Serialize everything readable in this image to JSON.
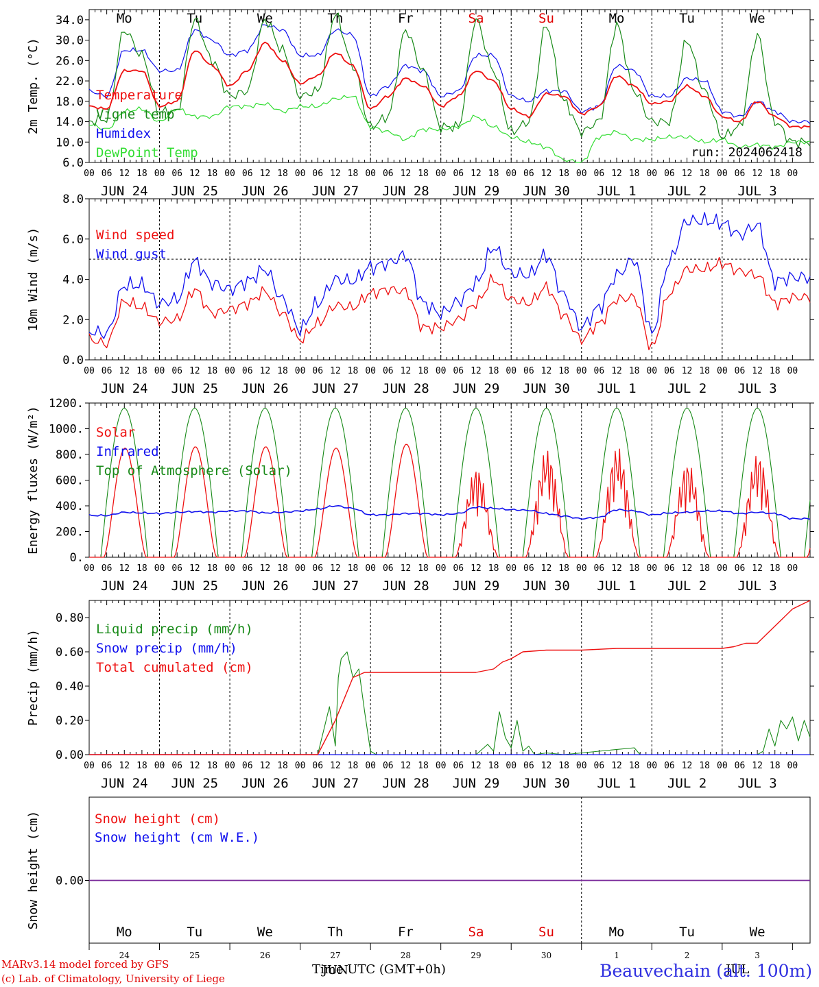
{
  "footer": {
    "credit_line1": "MARv3.14 model forced by GFS",
    "credit_line2": "(c) Lab. of Climatology, University of Liege",
    "station": "Beauvechain (alt. 100m)",
    "time_label": "Time UTC (GMT+0h)",
    "month_label": "JUN",
    "month_label_2": "JUL"
  },
  "colors": {
    "red": "#ee1010",
    "green": "#188a18",
    "blue": "#1010ee",
    "lightgreen": "#33dd33",
    "purple": "#7a2a9a"
  },
  "x_axis": {
    "hour_ticks": [
      "00",
      "06",
      "12",
      "18"
    ],
    "final_tick": "00",
    "days": [
      "JUN 24",
      "JUN 25",
      "JUN 26",
      "JUN 27",
      "JUN 28",
      "JUN 29",
      "JUN 30",
      "JUL  1",
      "JUL  2",
      "JUL  3"
    ],
    "weekdays": [
      "Mo",
      "Tu",
      "We",
      "Th",
      "Fr",
      "Sa",
      "Su",
      "Mo",
      "Tu",
      "We"
    ],
    "weekday_colors": [
      "#000",
      "#000",
      "#000",
      "#000",
      "#000",
      "#e00000",
      "#e00000",
      "#000",
      "#000",
      "#000"
    ],
    "day_numbers": [
      "24",
      "25",
      "26",
      "27",
      "28",
      "29",
      "30",
      "1",
      "2",
      "3"
    ]
  },
  "chart_data": [
    {
      "type": "line",
      "ylabel": "2m Temp. (°C)",
      "ylim": [
        6,
        36
      ],
      "yticks": [
        6.0,
        10.0,
        14.0,
        18.0,
        22.0,
        26.0,
        30.0,
        34.0
      ],
      "ytick_labels": [
        "6.0",
        "10.0",
        "14.0",
        "18.0",
        "22.0",
        "26.0",
        "30.0",
        "34.0"
      ],
      "annotation": "run: 2024062418",
      "x_hours": [
        0,
        6,
        12,
        18,
        24,
        30,
        36,
        42,
        48,
        54,
        60,
        66,
        72,
        78,
        84,
        90,
        96,
        102,
        108,
        114,
        120,
        126,
        132,
        138,
        144,
        150,
        156,
        162,
        168,
        174,
        180,
        186,
        192,
        198,
        204,
        210,
        216,
        222,
        228,
        234,
        240
      ],
      "series": [
        {
          "name": "Temperature",
          "color": "#ee1010",
          "values": [
            17,
            16.5,
            24,
            24,
            17,
            18,
            28,
            25,
            21,
            24,
            29.5,
            26,
            21.5,
            23,
            27.5,
            25,
            16.5,
            19,
            22.5,
            21,
            17,
            19,
            24,
            22,
            16.5,
            15,
            19.5,
            19,
            15.5,
            17,
            23,
            21,
            17.5,
            18,
            21,
            19,
            15,
            14,
            18,
            15,
            13
          ]
        },
        {
          "name": "Vigne temp",
          "color": "#188a18",
          "values": [
            14,
            14.5,
            32,
            27,
            16,
            16,
            34,
            26,
            19,
            20,
            34,
            28,
            19,
            20,
            35,
            25,
            13,
            15,
            32,
            24,
            13,
            13,
            34,
            24,
            12,
            14,
            33,
            18,
            12,
            14,
            33,
            20,
            14,
            14,
            30,
            20,
            11,
            13,
            31,
            14,
            10
          ]
        },
        {
          "name": "Humidex",
          "color": "#1010ee",
          "values": [
            20,
            19,
            28,
            28,
            24,
            24,
            32,
            30,
            27,
            28,
            33,
            32,
            27,
            27,
            32,
            31,
            19,
            21,
            25,
            24,
            19,
            20,
            27,
            27,
            19,
            18,
            20,
            20,
            16,
            17,
            25,
            24,
            19,
            19,
            22.5,
            22,
            16,
            15,
            18,
            16,
            14
          ]
        },
        {
          "name": "DewPoint Temp",
          "color": "#33dd33",
          "values": [
            13.5,
            12.5,
            16,
            16.5,
            14,
            16.5,
            15,
            15,
            17,
            17,
            17.5,
            16,
            17,
            17,
            18.5,
            19,
            13,
            12,
            10.5,
            12.5,
            12.5,
            13,
            15,
            13,
            11,
            10,
            9,
            6.5,
            6,
            11,
            12,
            10.5,
            10.5,
            11,
            11,
            10,
            10.5,
            9,
            9.5,
            9,
            10
          ]
        }
      ]
    },
    {
      "type": "line",
      "ylabel": "10m Wind (m/s)",
      "ylim": [
        0,
        8
      ],
      "yticks": [
        0,
        2,
        4,
        6,
        8
      ],
      "ytick_labels": [
        "0.0",
        "2.0",
        "4.0",
        "6.0",
        "8.0"
      ],
      "reference_line": 5.0,
      "x_hours": [
        0,
        6,
        12,
        18,
        24,
        30,
        36,
        42,
        48,
        54,
        60,
        66,
        72,
        78,
        84,
        90,
        96,
        102,
        108,
        114,
        120,
        126,
        132,
        138,
        144,
        150,
        156,
        162,
        168,
        174,
        180,
        186,
        192,
        198,
        204,
        210,
        216,
        222,
        228,
        234,
        240
      ],
      "series": [
        {
          "name": "Wind speed",
          "color": "#ee1010",
          "values": [
            1.0,
            0.8,
            2.9,
            2.6,
            1.9,
            2.0,
            3.5,
            2.3,
            2.5,
            2.8,
            3.4,
            2.3,
            1.0,
            1.8,
            2.7,
            2.6,
            3.3,
            3.5,
            3.4,
            1.6,
            1.6,
            2.0,
            2.8,
            4.0,
            3.0,
            2.8,
            3.6,
            2.2,
            1.0,
            1.8,
            3.0,
            3.1,
            0.6,
            3.3,
            4.5,
            4.5,
            4.8,
            4.4,
            4.2,
            2.8,
            3.1
          ]
        },
        {
          "name": "Wind gust",
          "color": "#1010ee",
          "values": [
            1.4,
            1.3,
            3.7,
            3.7,
            2.8,
            3.0,
            4.9,
            3.8,
            3.5,
            3.9,
            4.5,
            3.0,
            1.5,
            2.8,
            4.0,
            3.9,
            4.6,
            4.8,
            5.2,
            2.8,
            2.3,
            2.9,
            3.8,
            5.6,
            4.3,
            4.2,
            5.2,
            3.2,
            1.6,
            2.6,
            4.2,
            5.0,
            1.3,
            4.9,
            6.9,
            6.9,
            6.8,
            6.2,
            6.7,
            3.9,
            4.1
          ]
        }
      ]
    },
    {
      "type": "line",
      "ylabel": "Energy fluxes (W/m²)",
      "ylim": [
        0,
        1200
      ],
      "yticks": [
        0,
        200,
        400,
        600,
        800,
        1000,
        1200
      ],
      "ytick_labels": [
        "0.",
        "200.",
        "400.",
        "600.",
        "800.",
        "1000.",
        "1200."
      ],
      "solar_peaks": [
        850,
        860,
        860,
        850,
        880,
        700,
        840,
        860,
        740,
        810
      ],
      "toa_peak": 1160,
      "infrared_values": [
        325,
        325,
        350,
        345,
        340,
        350,
        355,
        350,
        360,
        360,
        345,
        350,
        360,
        375,
        400,
        380,
        330,
        330,
        340,
        340,
        330,
        340,
        390,
        380,
        370,
        365,
        340,
        320,
        300,
        310,
        370,
        360,
        330,
        345,
        350,
        360,
        360,
        340,
        350,
        340,
        300
      ],
      "series": [
        {
          "name": "Solar",
          "color": "#ee1010"
        },
        {
          "name": "Infrared",
          "color": "#1010ee"
        },
        {
          "name": "Top of Atmosphere (Solar)",
          "color": "#188a18"
        }
      ]
    },
    {
      "type": "line",
      "ylabel": "Precip (mm/h)",
      "ylim": [
        0,
        0.9
      ],
      "yticks": [
        0,
        0.2,
        0.4,
        0.6,
        0.8
      ],
      "ytick_labels": [
        "0.00",
        "0.20",
        "0.40",
        "0.60",
        "0.80"
      ],
      "liquid_points": [
        [
          0,
          0
        ],
        [
          78,
          0
        ],
        [
          82,
          0.28
        ],
        [
          84,
          0.05
        ],
        [
          85,
          0.45
        ],
        [
          86,
          0.56
        ],
        [
          88,
          0.6
        ],
        [
          90,
          0.45
        ],
        [
          92,
          0.5
        ],
        [
          94,
          0.25
        ],
        [
          96,
          0.02
        ],
        [
          98,
          0
        ],
        [
          132,
          0
        ],
        [
          136,
          0.06
        ],
        [
          138,
          0.02
        ],
        [
          140,
          0.25
        ],
        [
          142,
          0.1
        ],
        [
          144,
          0.04
        ],
        [
          146,
          0.2
        ],
        [
          148,
          0.02
        ],
        [
          150,
          0.05
        ],
        [
          152,
          0
        ],
        [
          156,
          0.01
        ],
        [
          162,
          0
        ],
        [
          186,
          0.04
        ],
        [
          188,
          0
        ],
        [
          228,
          0
        ],
        [
          230,
          0.02
        ],
        [
          232,
          0.15
        ],
        [
          234,
          0.05
        ],
        [
          236,
          0.2
        ],
        [
          238,
          0.15
        ],
        [
          240,
          0.22
        ],
        [
          242,
          0.08
        ],
        [
          244,
          0.2
        ],
        [
          246,
          0.1
        ]
      ],
      "cumulated_points": [
        [
          0,
          0
        ],
        [
          78,
          0
        ],
        [
          84,
          0.2
        ],
        [
          90,
          0.45
        ],
        [
          94,
          0.48
        ],
        [
          132,
          0.48
        ],
        [
          138,
          0.5
        ],
        [
          141,
          0.54
        ],
        [
          144,
          0.56
        ],
        [
          148,
          0.6
        ],
        [
          156,
          0.61
        ],
        [
          168,
          0.61
        ],
        [
          180,
          0.62
        ],
        [
          216,
          0.62
        ],
        [
          220,
          0.63
        ],
        [
          224,
          0.65
        ],
        [
          228,
          0.65
        ],
        [
          234,
          0.75
        ],
        [
          240,
          0.85
        ],
        [
          246,
          0.9
        ]
      ],
      "series": [
        {
          "name": "Liquid precip (mm/h)",
          "color": "#188a18"
        },
        {
          "name": "Snow precip (mm/h)",
          "color": "#1010ee"
        },
        {
          "name": "Total cumulated (cm)",
          "color": "#ee1010"
        }
      ]
    },
    {
      "type": "line",
      "ylabel": "Snow height (cm)",
      "ytick_labels": [
        "0.00"
      ],
      "values": [
        0,
        0
      ],
      "series": [
        {
          "name": "Snow height (cm)",
          "color": "#ee1010"
        },
        {
          "name": "Snow height (cm W.E.)",
          "color": "#1010ee"
        }
      ]
    }
  ]
}
